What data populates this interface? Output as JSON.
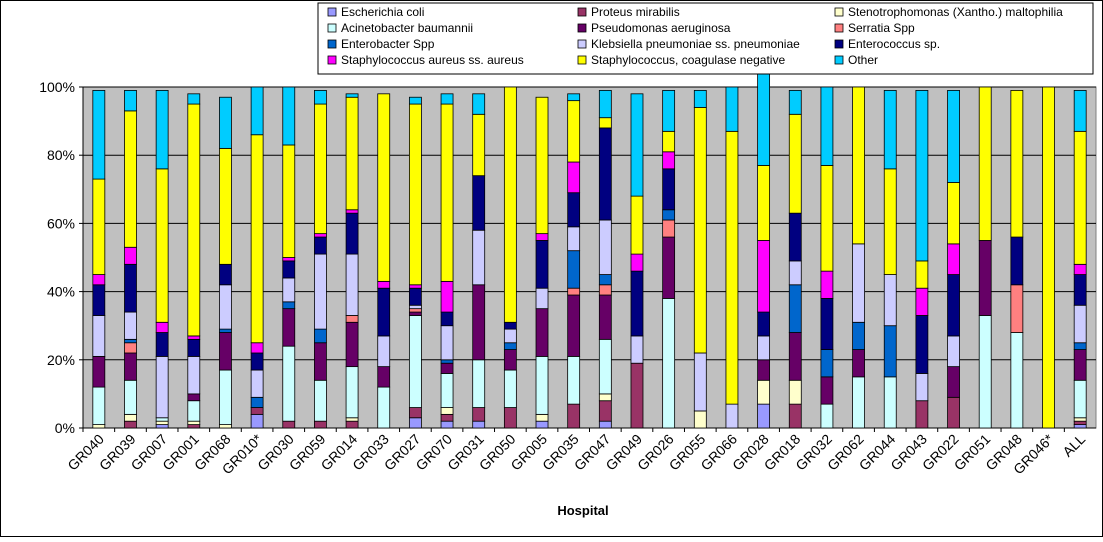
{
  "chart_data": {
    "type": "bar",
    "stacked": true,
    "percent": true,
    "xlabel": "Hospital",
    "ylabel": "",
    "ylim": [
      0,
      100
    ],
    "yticks": [
      "0%",
      "20%",
      "40%",
      "60%",
      "80%",
      "100%"
    ],
    "grid": true,
    "legend_position": "top-right",
    "plot_background": "#c0c0c0",
    "categories": [
      "GR040",
      "GR039",
      "GR007",
      "GR001",
      "GR068",
      "GR010*",
      "GR030",
      "GR059",
      "GR014",
      "GR033",
      "GR027",
      "GR070",
      "GR031",
      "GR050",
      "GR005",
      "GR035",
      "GR047",
      "GR049",
      "GR026",
      "GR055",
      "GR066",
      "GR028",
      "GR018",
      "GR032",
      "GR062",
      "GR044",
      "GR043",
      "GR022",
      "GR051",
      "GR048",
      "GR046*",
      "ALL"
    ],
    "series": [
      {
        "name": "Escherichia coli",
        "color": "#9999ff",
        "values": [
          0,
          0,
          1,
          0,
          0,
          4,
          0,
          0,
          0,
          0,
          3,
          2,
          2,
          0,
          2,
          0,
          2,
          0,
          0,
          0,
          0,
          7,
          0,
          0,
          0,
          0,
          0,
          0,
          0,
          0,
          0,
          1
        ]
      },
      {
        "name": "Proteus mirabilis",
        "color": "#993366",
        "values": [
          0,
          2,
          0,
          1,
          0,
          2,
          2,
          2,
          2,
          0,
          3,
          2,
          4,
          6,
          0,
          7,
          6,
          19,
          0,
          0,
          0,
          0,
          7,
          0,
          0,
          0,
          8,
          9,
          0,
          0,
          0,
          1
        ]
      },
      {
        "name": "Stenotrophomonas (Xantho.) maltophilia",
        "color": "#ffffcc",
        "values": [
          1,
          2,
          1,
          1,
          1,
          0,
          0,
          0,
          1,
          0,
          0,
          2,
          0,
          0,
          2,
          0,
          2,
          0,
          0,
          5,
          0,
          7,
          7,
          0,
          0,
          0,
          0,
          0,
          0,
          0,
          0,
          1
        ]
      },
      {
        "name": "Acinetobacter baumannii",
        "color": "#ccffff",
        "values": [
          11,
          10,
          1,
          6,
          16,
          0,
          22,
          12,
          15,
          12,
          27,
          10,
          14,
          11,
          17,
          14,
          16,
          0,
          38,
          0,
          0,
          0,
          0,
          7,
          15,
          15,
          0,
          0,
          33,
          28,
          0,
          11
        ]
      },
      {
        "name": "Pseudomonas aeruginosa",
        "color": "#660066",
        "values": [
          9,
          8,
          0,
          2,
          11,
          0,
          11,
          11,
          13,
          6,
          1,
          3,
          22,
          6,
          14,
          18,
          13,
          0,
          18,
          0,
          0,
          6,
          14,
          8,
          8,
          0,
          0,
          9,
          22,
          0,
          0,
          9
        ]
      },
      {
        "name": "Serratia Spp",
        "color": "#ff8080",
        "values": [
          0,
          3,
          0,
          0,
          0,
          0,
          0,
          0,
          2,
          0,
          1,
          0,
          0,
          0,
          0,
          2,
          3,
          0,
          5,
          0,
          0,
          0,
          0,
          0,
          0,
          0,
          0,
          0,
          0,
          14,
          0,
          0
        ]
      },
      {
        "name": "Enterobacter Spp",
        "color": "#0066cc",
        "values": [
          0,
          1,
          0,
          0,
          1,
          3,
          2,
          4,
          0,
          0,
          0,
          1,
          0,
          2,
          0,
          11,
          3,
          0,
          3,
          0,
          0,
          0,
          14,
          8,
          8,
          15,
          0,
          0,
          0,
          0,
          0,
          2
        ]
      },
      {
        "name": "Klebsiella pneumoniae ss. pneumoniae",
        "color": "#ccccff",
        "values": [
          12,
          8,
          18,
          11,
          13,
          8,
          7,
          22,
          18,
          9,
          1,
          10,
          16,
          4,
          6,
          7,
          16,
          8,
          0,
          17,
          7,
          7,
          7,
          0,
          23,
          15,
          8,
          9,
          0,
          0,
          0,
          11
        ]
      },
      {
        "name": "Enterococcus sp.",
        "color": "#000080",
        "values": [
          9,
          14,
          7,
          5,
          6,
          5,
          5,
          5,
          12,
          14,
          5,
          4,
          16,
          2,
          14,
          10,
          27,
          19,
          12,
          0,
          0,
          7,
          14,
          15,
          0,
          0,
          17,
          18,
          0,
          14,
          0,
          9
        ]
      },
      {
        "name": "Staphylococcus aureus ss. aureus",
        "color": "#ff00ff",
        "values": [
          3,
          5,
          3,
          1,
          0,
          3,
          1,
          1,
          1,
          2,
          1,
          9,
          0,
          0,
          2,
          9,
          0,
          5,
          5,
          0,
          0,
          21,
          0,
          8,
          0,
          0,
          8,
          9,
          0,
          0,
          0,
          3
        ]
      },
      {
        "name": "Staphylococcus, coagulase negative",
        "color": "#ffff00",
        "values": [
          28,
          40,
          45,
          68,
          34,
          61,
          33,
          38,
          33,
          55,
          53,
          52,
          18,
          69,
          40,
          18,
          3,
          17,
          6,
          72,
          80,
          22,
          29,
          31,
          46,
          31,
          8,
          18,
          45,
          43,
          100,
          39
        ]
      },
      {
        "name": "Other",
        "color": "#00ccff",
        "values": [
          26,
          6,
          23,
          3,
          15,
          14,
          17,
          4,
          1,
          0,
          2,
          3,
          6,
          0,
          0,
          2,
          8,
          30,
          12,
          5,
          13,
          28,
          7,
          23,
          0,
          23,
          50,
          27,
          0,
          0,
          0,
          12
        ]
      }
    ]
  }
}
